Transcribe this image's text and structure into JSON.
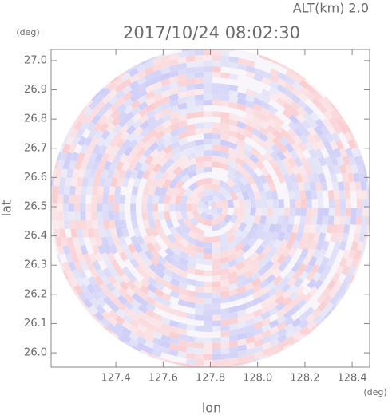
{
  "chart_data": {
    "type": "heatmap",
    "title": "2017/10/24 08:02:30",
    "subtitle": "ALT(km) 2.0",
    "xlabel": "lon",
    "ylabel": "lat",
    "xunit": "(deg)",
    "yunit": "(deg)",
    "xlim": [
      127.126,
      128.474
    ],
    "ylim": [
      25.951,
      27.038
    ],
    "xticks": [
      127.4,
      127.6,
      127.8,
      {
        "value": 128,
        "label": "128.0"
      },
      128.2,
      128.4
    ],
    "yticks": [
      {
        "value": 26,
        "label": "26.0"
      },
      26.1,
      26.2,
      26.3,
      26.4,
      26.5,
      26.6,
      26.7,
      26.8,
      26.9,
      {
        "value": 27,
        "label": "27.0"
      }
    ]
  }
}
